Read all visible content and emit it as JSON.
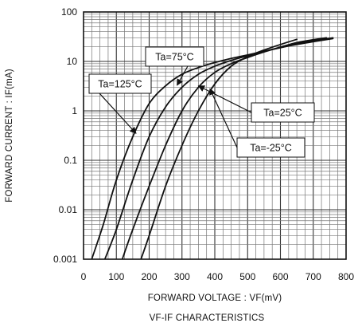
{
  "chart_data": {
    "type": "line",
    "xlabel": "FORWARD VOLTAGE : VF(mV)",
    "ylabel": "FORWARD CURRENT : IF(mA)",
    "caption": "VF-IF CHARACTERISTICS",
    "xlim": [
      0,
      800
    ],
    "ylim": [
      0.001,
      100
    ],
    "yscale": "log",
    "grid": true,
    "x_ticks": [
      "0",
      "100",
      "200",
      "300",
      "400",
      "500",
      "600",
      "700",
      "800"
    ],
    "y_ticks": [
      "0.001",
      "0.01",
      "0.1",
      "1",
      "10",
      "100"
    ],
    "series": [
      {
        "name": "Ta=125°C",
        "x": [
          25,
          60,
          100,
          150,
          200,
          250,
          300,
          350,
          400,
          450,
          500,
          550,
          600,
          650,
          700,
          760
        ],
        "y": [
          0.001,
          0.005,
          0.04,
          0.3,
          1.4,
          3.2,
          5.5,
          7.5,
          9.5,
          11.5,
          13.5,
          16,
          19,
          22,
          25,
          29
        ]
      },
      {
        "name": "Ta=75°C",
        "x": [
          65,
          100,
          150,
          200,
          250,
          300,
          350,
          400,
          450,
          500,
          550,
          600,
          650,
          700,
          760
        ],
        "y": [
          0.001,
          0.004,
          0.04,
          0.3,
          1.2,
          3,
          5.5,
          8,
          10.5,
          13,
          16,
          19,
          23,
          26,
          30
        ]
      },
      {
        "name": "Ta=25°C",
        "x": [
          118,
          150,
          200,
          250,
          300,
          350,
          400,
          450,
          500,
          550,
          600,
          650,
          700,
          740
        ],
        "y": [
          0.001,
          0.004,
          0.03,
          0.2,
          1,
          3,
          6,
          9,
          12,
          15.5,
          19.5,
          24,
          27.5,
          30
        ]
      },
      {
        "name": "Ta=-25°C",
        "x": [
          175,
          200,
          250,
          300,
          350,
          400,
          450,
          500,
          550,
          600,
          650
        ],
        "y": [
          0.001,
          0.003,
          0.03,
          0.2,
          1,
          3.5,
          8,
          12.5,
          17,
          22,
          28
        ]
      }
    ],
    "annotations": [
      {
        "label": "Ta=125°C",
        "target_x": 160,
        "target_y": 0.35
      },
      {
        "label": "Ta=75°C",
        "target_x": 285,
        "target_y": 3.3
      },
      {
        "label": "Ta=25°C",
        "target_x": 350,
        "target_y": 3.2
      },
      {
        "label": "Ta=-25°C",
        "target_x": 385,
        "target_y": 2.8
      }
    ]
  }
}
